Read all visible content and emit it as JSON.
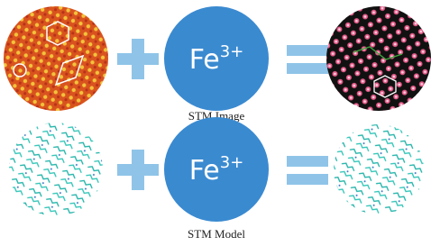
{
  "rows": [
    {
      "ion": "Fe",
      "charge": "3+",
      "caption": "STM Image"
    },
    {
      "ion": "Fe",
      "charge": "3+",
      "caption": "STM Model"
    }
  ]
}
